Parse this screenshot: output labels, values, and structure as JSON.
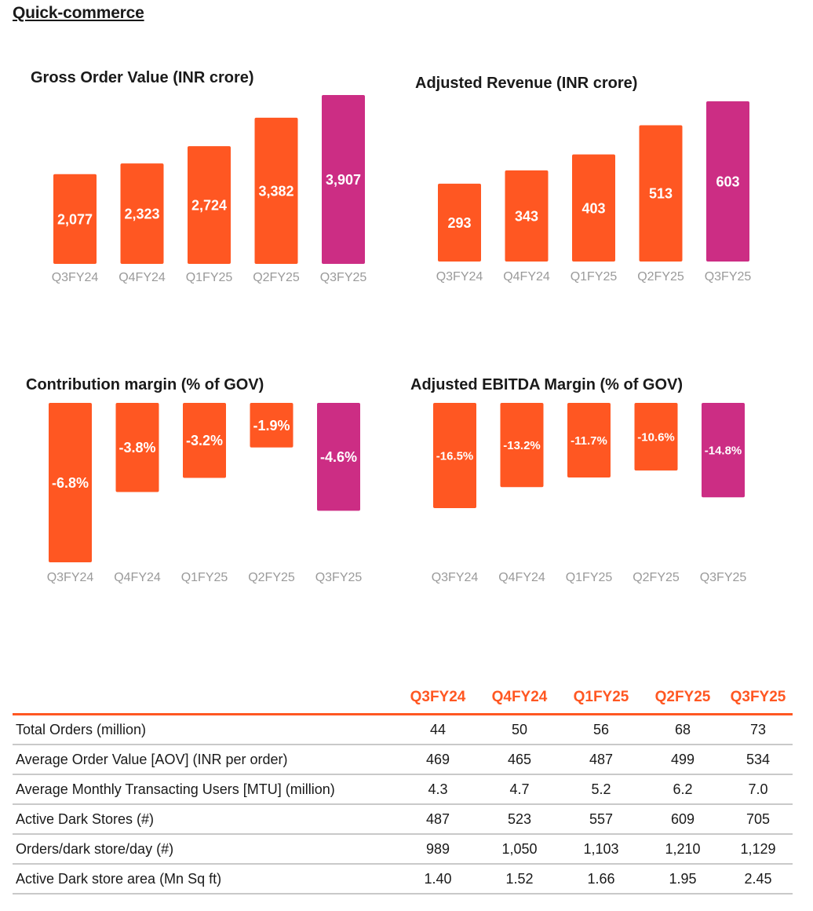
{
  "page": {
    "title": "Quick-commerce"
  },
  "colors": {
    "bar": "#FF5722",
    "highlight": "#CC2D84",
    "table_header": "#FF5722"
  },
  "chart_data": [
    {
      "type": "bar",
      "title": "Gross Order Value (INR crore)",
      "categories": [
        "Q3FY24",
        "Q4FY24",
        "Q1FY25",
        "Q2FY25",
        "Q3FY25"
      ],
      "values": [
        2077,
        2323,
        2724,
        3382,
        3907
      ],
      "value_labels": [
        "2,077",
        "2,323",
        "2,724",
        "3,382",
        "3,907"
      ],
      "highlight_index": 4,
      "ylim": [
        0,
        3907
      ]
    },
    {
      "type": "bar",
      "title": "Adjusted Revenue (INR crore)",
      "categories": [
        "Q3FY24",
        "Q4FY24",
        "Q1FY25",
        "Q2FY25",
        "Q3FY25"
      ],
      "values": [
        293,
        343,
        403,
        513,
        603
      ],
      "value_labels": [
        "293",
        "343",
        "403",
        "513",
        "603"
      ],
      "highlight_index": 4,
      "ylim": [
        0,
        603
      ]
    },
    {
      "type": "bar",
      "title": "Contribution margin (% of GOV)",
      "categories": [
        "Q3FY24",
        "Q4FY24",
        "Q1FY25",
        "Q2FY25",
        "Q3FY25"
      ],
      "values": [
        -6.8,
        -3.8,
        -3.2,
        -1.9,
        -4.6
      ],
      "value_labels": [
        "-6.8%",
        "-3.8%",
        "-3.2%",
        "-1.9%",
        "-4.6%"
      ],
      "highlight_index": 4,
      "ylim": [
        -6.8,
        0
      ]
    },
    {
      "type": "bar",
      "title": "Adjusted EBITDA Margin (% of GOV)",
      "categories": [
        "Q3FY24",
        "Q4FY24",
        "Q1FY25",
        "Q2FY25",
        "Q3FY25"
      ],
      "values": [
        -16.5,
        -13.2,
        -11.7,
        -10.6,
        -14.8
      ],
      "value_labels": [
        "-16.5%",
        "-13.2%",
        "-11.7%",
        "-10.6%",
        "-14.8%"
      ],
      "highlight_index": 4,
      "ylim": [
        -16.5,
        0
      ]
    }
  ],
  "table": {
    "columns": [
      "Q3FY24",
      "Q4FY24",
      "Q1FY25",
      "Q2FY25",
      "Q3FY25"
    ],
    "rows": [
      {
        "metric": "Total Orders (million)",
        "values": [
          "44",
          "50",
          "56",
          "68",
          "73"
        ]
      },
      {
        "metric": "Average Order Value [AOV] (INR per order)",
        "values": [
          "469",
          "465",
          "487",
          "499",
          "534"
        ]
      },
      {
        "metric": "Average Monthly Transacting Users [MTU] (million)",
        "values": [
          "4.3",
          "4.7",
          "5.2",
          "6.2",
          "7.0"
        ]
      },
      {
        "metric": "Active Dark Stores (#)",
        "values": [
          "487",
          "523",
          "557",
          "609",
          "705"
        ]
      },
      {
        "metric": "Orders/dark store/day (#)",
        "values": [
          "989",
          "1,050",
          "1,103",
          "1,210",
          "1,129"
        ]
      },
      {
        "metric": "Active Dark store area (Mn Sq ft)",
        "values": [
          "1.40",
          "1.52",
          "1.66",
          "1.95",
          "2.45"
        ]
      }
    ]
  }
}
